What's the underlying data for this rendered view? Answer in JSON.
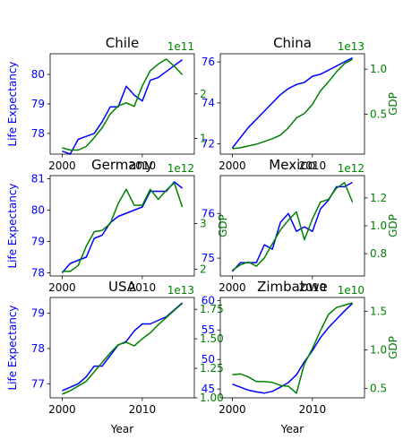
{
  "figure": {
    "left_axis_label": "Life Expectancy",
    "right_axis_label": "GDP",
    "x_axis_label": "Year",
    "colors": {
      "life": "#0000ff",
      "gdp": "#008000"
    }
  },
  "chart_data": [
    {
      "type": "line",
      "title": "Chile",
      "x": [
        2000,
        2001,
        2002,
        2003,
        2004,
        2005,
        2006,
        2007,
        2008,
        2009,
        2010,
        2011,
        2012,
        2013,
        2014,
        2015
      ],
      "xlim": [
        1998.5,
        2016.5
      ],
      "xticks": [
        2000,
        2010
      ],
      "series": [
        {
          "name": "",
          "axis": "left",
          "values": [
            77.4,
            77.3,
            77.8,
            77.9,
            78.0,
            78.4,
            78.9,
            78.9,
            79.6,
            79.3,
            79.1,
            79.8,
            79.9,
            80.1,
            80.3,
            80.5
          ]
        },
        {
          "name": "",
          "axis": "right",
          "values": [
            0.79,
            0.74,
            0.74,
            0.82,
            1.02,
            1.24,
            1.55,
            1.73,
            1.8,
            1.72,
            2.18,
            2.52,
            2.67,
            2.78,
            2.62,
            2.43
          ]
        }
      ],
      "left_axis": {
        "lim": [
          77.3,
          80.7
        ],
        "ticks": [
          78,
          79,
          80
        ],
        "tick_labels": [
          "78",
          "79",
          "80"
        ]
      },
      "right_axis": {
        "lim": [
          0.65,
          2.9
        ],
        "ticks": [
          1,
          2
        ],
        "tick_labels": [
          "1",
          "2"
        ],
        "offset_label": "1e11"
      },
      "xlabel": "",
      "show_left_label": true,
      "show_right_label": false
    },
    {
      "type": "line",
      "title": "China",
      "x": [
        2000,
        2001,
        2002,
        2003,
        2004,
        2005,
        2006,
        2007,
        2008,
        2009,
        2010,
        2011,
        2012,
        2013,
        2014,
        2015
      ],
      "xlim": [
        1998.5,
        2016.5
      ],
      "xticks": [
        2000,
        2010
      ],
      "series": [
        {
          "name": "",
          "axis": "left",
          "values": [
            71.8,
            72.3,
            72.8,
            73.2,
            73.6,
            74.0,
            74.4,
            74.7,
            74.9,
            75.0,
            75.3,
            75.4,
            75.6,
            75.8,
            76.0,
            76.2
          ]
        },
        {
          "name": "",
          "axis": "right",
          "values": [
            0.12,
            0.13,
            0.15,
            0.17,
            0.2,
            0.23,
            0.27,
            0.35,
            0.46,
            0.51,
            0.61,
            0.76,
            0.86,
            0.97,
            1.06,
            1.11
          ]
        }
      ],
      "left_axis": {
        "lim": [
          71.5,
          76.4
        ],
        "ticks": [
          72,
          74,
          76
        ],
        "tick_labels": [
          "72",
          "74",
          "76"
        ]
      },
      "right_axis": {
        "lim": [
          0.06,
          1.17
        ],
        "ticks": [
          0.5,
          1.0
        ],
        "tick_labels": [
          "0.5",
          "1.0"
        ],
        "offset_label": "1e13"
      },
      "xlabel": "",
      "show_left_label": false,
      "show_right_label": true
    },
    {
      "type": "line",
      "title": "Germany",
      "x": [
        2000,
        2001,
        2002,
        2003,
        2004,
        2005,
        2006,
        2007,
        2008,
        2009,
        2010,
        2011,
        2012,
        2013,
        2014,
        2015
      ],
      "xlim": [
        1998.5,
        2016.5
      ],
      "xticks": [
        2000,
        2010
      ],
      "series": [
        {
          "name": "",
          "axis": "left",
          "values": [
            78.0,
            78.3,
            78.4,
            78.5,
            79.1,
            79.2,
            79.6,
            79.8,
            79.9,
            80.0,
            80.1,
            80.6,
            80.6,
            80.6,
            80.9,
            80.7
          ]
        },
        {
          "name": "",
          "axis": "right",
          "values": [
            1.95,
            1.95,
            2.08,
            2.5,
            2.82,
            2.85,
            3.0,
            3.44,
            3.75,
            3.4,
            3.4,
            3.75,
            3.53,
            3.73,
            3.89,
            3.36
          ]
        }
      ],
      "left_axis": {
        "lim": [
          77.9,
          81.1
        ],
        "ticks": [
          78,
          79,
          80,
          81
        ],
        "tick_labels": [
          "78",
          "79",
          "80",
          "81"
        ]
      },
      "right_axis": {
        "lim": [
          1.85,
          4.05
        ],
        "ticks": [
          2,
          3
        ],
        "tick_labels": [
          "2",
          "3"
        ],
        "offset_label": "1e12"
      },
      "xlabel": "",
      "show_left_label": true,
      "show_right_label": true
    },
    {
      "type": "line",
      "title": "Mexico",
      "x": [
        2000,
        2001,
        2002,
        2003,
        2004,
        2005,
        2006,
        2007,
        2008,
        2009,
        2010,
        2011,
        2012,
        2013,
        2014,
        2015
      ],
      "xlim": [
        1998.5,
        2016.5
      ],
      "xticks": [
        2000,
        2010
      ],
      "series": [
        {
          "name": "",
          "axis": "left",
          "values": [
            74.7,
            74.9,
            74.9,
            74.9,
            75.3,
            75.2,
            75.8,
            76.0,
            75.6,
            75.7,
            75.6,
            76.1,
            76.3,
            76.6,
            76.6,
            76.7
          ]
        },
        {
          "name": "",
          "axis": "right",
          "values": [
            0.68,
            0.72,
            0.74,
            0.71,
            0.77,
            0.87,
            0.97,
            1.04,
            1.1,
            0.9,
            1.05,
            1.17,
            1.19,
            1.27,
            1.31,
            1.17
          ]
        }
      ],
      "left_axis": {
        "lim": [
          74.6,
          76.85
        ],
        "ticks": [
          75,
          76
        ],
        "tick_labels": [
          "75",
          "76"
        ]
      },
      "right_axis": {
        "lim": [
          0.64,
          1.36
        ],
        "ticks": [
          0.8,
          1.0,
          1.2
        ],
        "tick_labels": [
          "0.8",
          "1.0",
          "1.2"
        ],
        "offset_label": "1e12"
      },
      "xlabel": "",
      "show_left_label": false,
      "show_right_label": true
    },
    {
      "type": "line",
      "title": "USA",
      "x": [
        2000,
        2001,
        2002,
        2003,
        2004,
        2005,
        2006,
        2007,
        2008,
        2009,
        2010,
        2011,
        2012,
        2013,
        2014,
        2015
      ],
      "xlim": [
        1998.5,
        2016.5
      ],
      "xticks": [
        2000,
        2010
      ],
      "series": [
        {
          "name": "",
          "axis": "left",
          "values": [
            76.8,
            76.9,
            77.0,
            77.2,
            77.5,
            77.5,
            77.8,
            78.1,
            78.2,
            78.5,
            78.7,
            78.7,
            78.8,
            78.9,
            79.1,
            79.3
          ]
        },
        {
          "name": "",
          "axis": "right",
          "values": [
            1.03,
            1.06,
            1.1,
            1.14,
            1.22,
            1.3,
            1.38,
            1.45,
            1.47,
            1.44,
            1.5,
            1.55,
            1.62,
            1.68,
            1.74,
            1.8
          ]
        }
      ],
      "left_axis": {
        "lim": [
          76.6,
          79.45
        ],
        "ticks": [
          77,
          78,
          79
        ],
        "tick_labels": [
          "77",
          "78",
          "79"
        ]
      },
      "right_axis": {
        "lim": [
          1.0,
          1.85
        ],
        "ticks": [
          1.0,
          1.25,
          1.5,
          1.75
        ],
        "tick_labels": [
          "1.00",
          "1.25",
          "1.50",
          "1.75"
        ],
        "offset_label": "1e13"
      },
      "xlabel": "Year",
      "show_left_label": true,
      "show_right_label": false
    },
    {
      "type": "line",
      "title": "Zimbabwe",
      "x": [
        2000,
        2001,
        2002,
        2003,
        2004,
        2005,
        2006,
        2007,
        2008,
        2009,
        2010,
        2011,
        2012,
        2013,
        2014,
        2015
      ],
      "xlim": [
        1998.5,
        2016.5
      ],
      "xticks": [
        2000,
        2010
      ],
      "series": [
        {
          "name": "",
          "axis": "left",
          "values": [
            45.8,
            45.3,
            44.8,
            44.5,
            44.3,
            44.6,
            45.3,
            46.1,
            47.4,
            49.6,
            51.5,
            53.7,
            55.4,
            56.8,
            58.2,
            59.5
          ]
        },
        {
          "name": "",
          "axis": "right",
          "values": [
            0.68,
            0.69,
            0.65,
            0.59,
            0.59,
            0.58,
            0.54,
            0.53,
            0.44,
            0.82,
            1.02,
            1.25,
            1.46,
            1.55,
            1.58,
            1.61
          ]
        }
      ],
      "left_axis": {
        "lim": [
          43.5,
          60.5
        ],
        "ticks": [
          45,
          50,
          55,
          60
        ],
        "tick_labels": [
          "45",
          "50",
          "55",
          "60"
        ]
      },
      "right_axis": {
        "lim": [
          0.38,
          1.68
        ],
        "ticks": [
          0.5,
          1.0,
          1.5
        ],
        "tick_labels": [
          "0.5",
          "1.0",
          "1.5"
        ],
        "offset_label": "1e10"
      },
      "xlabel": "Year",
      "show_left_label": false,
      "show_right_label": true
    }
  ]
}
